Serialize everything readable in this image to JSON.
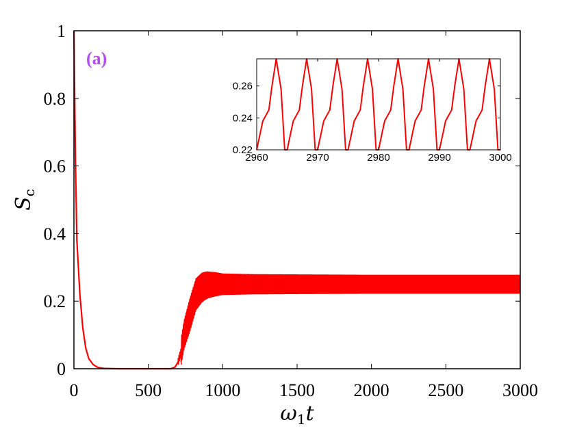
{
  "colors": {
    "series": "#ff0000",
    "panel_label": "#b24bf3",
    "axes": "#000000",
    "background": "#ffffff"
  },
  "chart_data": [
    {
      "id": "main",
      "type": "line",
      "panel_label": "(a)",
      "xlabel": "ω1t",
      "xlabel_base": "ω",
      "xlabel_sub": "1",
      "xlabel_tail": "t",
      "ylabel": "S_c",
      "ylabel_base": "S",
      "ylabel_sub": "c",
      "xlim": [
        0,
        3000
      ],
      "ylim": [
        0,
        1
      ],
      "xticks": [
        0,
        500,
        1000,
        1500,
        2000,
        2500,
        3000
      ],
      "xtick_labels": [
        "0",
        "500",
        "1000",
        "1500",
        "2000",
        "2500",
        "3000"
      ],
      "yticks": [
        0,
        0.2,
        0.4,
        0.6,
        0.8,
        1
      ],
      "ytick_labels": [
        "0",
        "0.2",
        "0.4",
        "0.6",
        "0.8",
        "1"
      ],
      "grid": false,
      "series": [
        {
          "x": [
            0,
            10,
            20,
            40,
            60,
            80,
            100,
            130,
            160,
            200,
            300,
            400,
            500,
            600,
            650,
            680,
            700,
            720,
            740,
            760,
            780,
            800,
            820,
            840,
            860,
            880,
            900,
            950,
            1000,
            1100,
            1500,
            2000,
            2500,
            3000
          ],
          "y": [
            1.0,
            0.62,
            0.38,
            0.22,
            0.12,
            0.06,
            0.03,
            0.012,
            0.004,
            0.001,
            0.0,
            0.0,
            0.0,
            0.0,
            0.0,
            0.005,
            0.02,
            0.05,
            0.1,
            0.13,
            0.16,
            0.19,
            0.22,
            0.23,
            0.24,
            0.245,
            0.248,
            0.25,
            0.25,
            0.25,
            0.25,
            0.25,
            0.25,
            0.25
          ],
          "band_start": 720,
          "band_half_width": [
            0.04,
            0.05,
            0.045,
            0.04,
            0.032,
            0.03,
            0.028,
            0.028
          ],
          "band_x": [
            720,
            780,
            850,
            900,
            1000,
            1200,
            2000,
            3000
          ]
        }
      ]
    },
    {
      "id": "inset",
      "type": "line",
      "xlim": [
        2960,
        3000
      ],
      "ylim": [
        0.22,
        0.277
      ],
      "xticks": [
        2960,
        2970,
        2980,
        2990,
        3000
      ],
      "xtick_labels": [
        "2960",
        "2970",
        "2980",
        "2990",
        "3000"
      ],
      "yticks": [
        0.22,
        0.24,
        0.26
      ],
      "ytick_labels": [
        "0.22",
        "0.24",
        "0.26"
      ],
      "grid": false,
      "series": [
        {
          "period": 5,
          "phase_start": 2960,
          "min": 0.22,
          "max": 0.277,
          "shoulder": 0.245,
          "x": [
            2960,
            2961,
            2962,
            2962.5,
            2963.2,
            2964,
            2964.6,
            2965,
            2966,
            2967,
            2967.5,
            2968.2,
            2969,
            2969.6,
            2970
          ],
          "y": [
            0.22,
            0.238,
            0.245,
            0.26,
            0.277,
            0.258,
            0.22,
            0.22,
            0.238,
            0.245,
            0.26,
            0.277,
            0.258,
            0.22,
            0.22
          ]
        }
      ]
    }
  ]
}
